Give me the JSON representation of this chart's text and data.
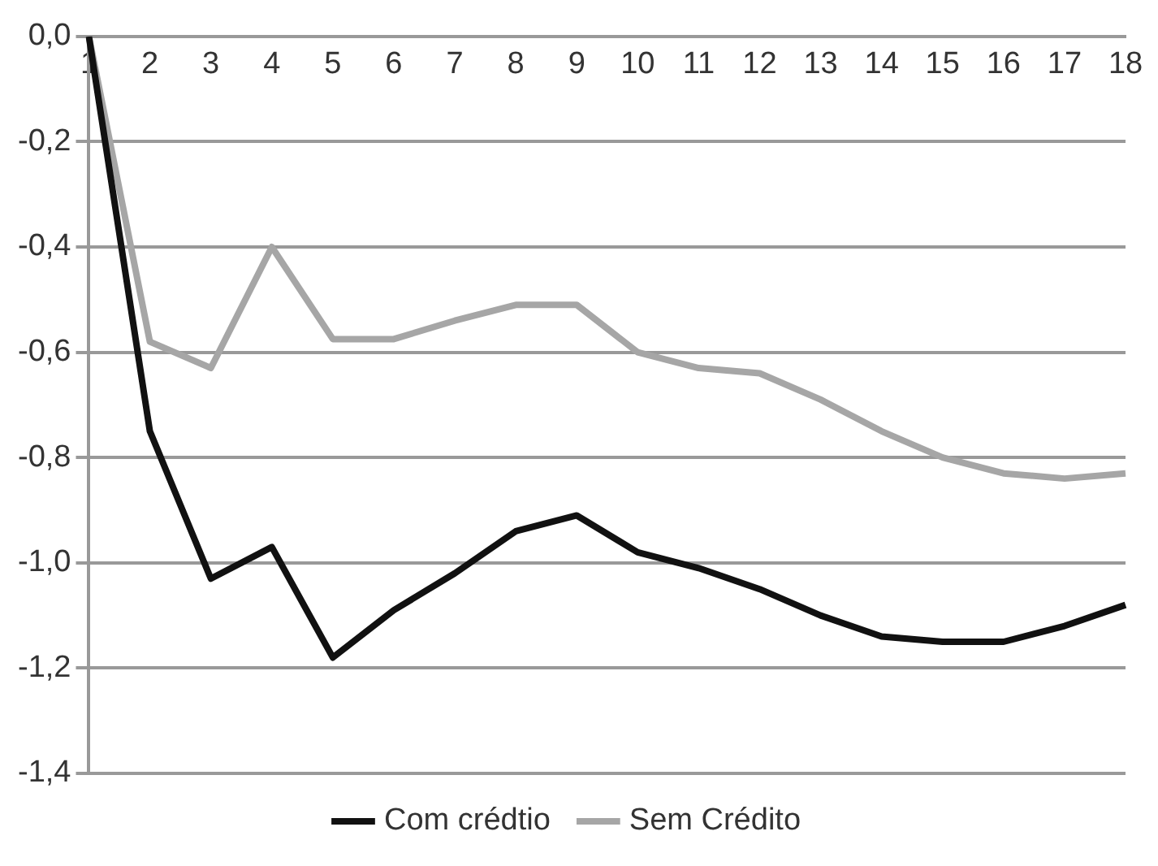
{
  "chart_data": {
    "type": "line",
    "categories": [
      "1",
      "2",
      "3",
      "4",
      "5",
      "6",
      "7",
      "8",
      "9",
      "10",
      "11",
      "12",
      "13",
      "14",
      "15",
      "16",
      "17",
      "18"
    ],
    "series": [
      {
        "name": "Com crédtio",
        "color": "#111111",
        "values": [
          0,
          -0.75,
          -1.03,
          -0.97,
          -1.18,
          -1.09,
          -1.02,
          -0.94,
          -0.91,
          -0.98,
          -1.01,
          -1.05,
          -1.1,
          -1.14,
          -1.15,
          -1.15,
          -1.12,
          -1.08
        ]
      },
      {
        "name": "Sem Crédito",
        "color": "#a6a6a6",
        "values": [
          0,
          -0.58,
          -0.63,
          -0.4,
          -0.575,
          -0.575,
          -0.54,
          -0.51,
          -0.51,
          -0.6,
          -0.63,
          -0.64,
          -0.69,
          -0.75,
          -0.8,
          -0.83,
          -0.84,
          -0.83
        ]
      }
    ],
    "ylim": [
      -1.4,
      0
    ],
    "yticks": [
      {
        "value": 0,
        "label": "0,0"
      },
      {
        "value": -0.2,
        "label": "-0,2"
      },
      {
        "value": -0.4,
        "label": "-0,4"
      },
      {
        "value": -0.6,
        "label": "-0,6"
      },
      {
        "value": -0.8,
        "label": "-0,8"
      },
      {
        "value": -1,
        "label": "-1,0"
      },
      {
        "value": -1.2,
        "label": "-1,2"
      },
      {
        "value": -1.4,
        "label": "-1,4"
      }
    ],
    "grid": "y",
    "legend": "bottom",
    "marker": "none",
    "line_style": "solid"
  }
}
